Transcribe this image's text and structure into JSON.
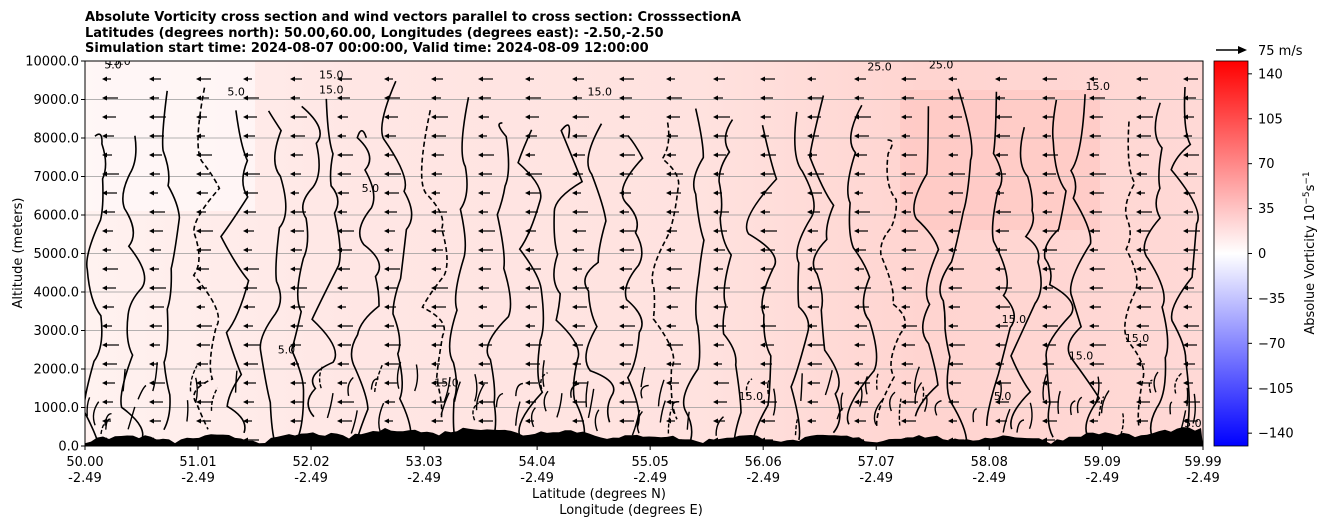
{
  "chart_data": {
    "type": "heatmap",
    "title_lines": [
      "Absolute Vorticity cross section and wind vectors parallel to cross section: CrosssectionA",
      "Latitudes (degrees north): 50.00,60.00, Longitudes (degrees east): -2.50,-2.50",
      "Simulation start time: 2024-08-07 00:00:00, Valid time: 2024-08-09 12:00:00"
    ],
    "ylabel": "Altitude (meters)",
    "xlabel_lines": [
      "Latitude (degrees N)",
      "Longitude (degrees E)"
    ],
    "x_ticks": [
      {
        "lat": "50.00",
        "lon": "-2.49"
      },
      {
        "lat": "51.01",
        "lon": "-2.49"
      },
      {
        "lat": "52.02",
        "lon": "-2.49"
      },
      {
        "lat": "53.03",
        "lon": "-2.49"
      },
      {
        "lat": "54.04",
        "lon": "-2.49"
      },
      {
        "lat": "55.05",
        "lon": "-2.49"
      },
      {
        "lat": "56.06",
        "lon": "-2.49"
      },
      {
        "lat": "57.07",
        "lon": "-2.49"
      },
      {
        "lat": "58.08",
        "lon": "-2.49"
      },
      {
        "lat": "59.09",
        "lon": "-2.49"
      },
      {
        "lat": "59.99",
        "lon": "-2.49"
      }
    ],
    "xlim": [
      50.0,
      59.99
    ],
    "ylim": [
      0,
      10000
    ],
    "y_ticks": [
      "0.0",
      "1000.0",
      "2000.0",
      "3000.0",
      "4000.0",
      "5000.0",
      "6000.0",
      "7000.0",
      "8000.0",
      "9000.0",
      "10000.0"
    ],
    "y_tick_values": [
      0,
      1000,
      2000,
      3000,
      4000,
      5000,
      6000,
      7000,
      8000,
      9000,
      10000
    ],
    "grid": "horizontal",
    "colorbar": {
      "label": "Absolue Vorticity 10$^{-5}$s$^{-1}$",
      "label_main": "Absolue Vorticity 10",
      "label_exp1": "−5",
      "label_unit": "s",
      "label_exp2": "−1",
      "range": [
        -150,
        150
      ],
      "ticks": [
        "140",
        "105",
        "70",
        "35",
        "0",
        "−35",
        "−70",
        "−105",
        "−140"
      ],
      "tick_values": [
        140,
        105,
        70,
        35,
        0,
        -35,
        -70,
        -105,
        -140
      ],
      "colors": {
        "negative": "#0000ff",
        "zero": "#ffffff",
        "positive": "#ff0000"
      }
    },
    "quiver_key": {
      "label": "75 m/s",
      "speed": 75
    },
    "contour_labels": [
      {
        "text": "5.0",
        "x": 50.25,
        "y": 9800
      },
      {
        "text": "5.0",
        "x": 51.35,
        "y": 9100
      },
      {
        "text": "15.0",
        "x": 52.2,
        "y": 9550
      },
      {
        "text": "15.0",
        "x": 52.2,
        "y": 9150
      },
      {
        "text": "15.0",
        "x": 54.6,
        "y": 9100
      },
      {
        "text": "5.0",
        "x": 52.55,
        "y": 6600
      },
      {
        "text": "25.0",
        "x": 57.1,
        "y": 9750
      },
      {
        "text": "25.0",
        "x": 57.65,
        "y": 9800
      },
      {
        "text": "15.0",
        "x": 59.05,
        "y": 9250
      },
      {
        "text": "15.0",
        "x": 58.3,
        "y": 3200
      },
      {
        "text": "15.0",
        "x": 59.4,
        "y": 2700
      },
      {
        "text": "15.0",
        "x": 58.9,
        "y": 2250
      },
      {
        "text": "5.0",
        "x": 51.8,
        "y": 2400
      },
      {
        "text": "15.0",
        "x": 53.23,
        "y": 1550
      },
      {
        "text": "15.0",
        "x": 55.95,
        "y": 1200
      },
      {
        "text": "5.0",
        "x": 58.2,
        "y": 1200
      },
      {
        "text": "5.0",
        "x": 59.9,
        "y": 500
      },
      {
        "text": "15.0",
        "x": 50.3,
        "y": 9900
      }
    ],
    "vectors_direction": "westward (parallel component negative)",
    "terrain": "black filled orography near 0 m"
  }
}
